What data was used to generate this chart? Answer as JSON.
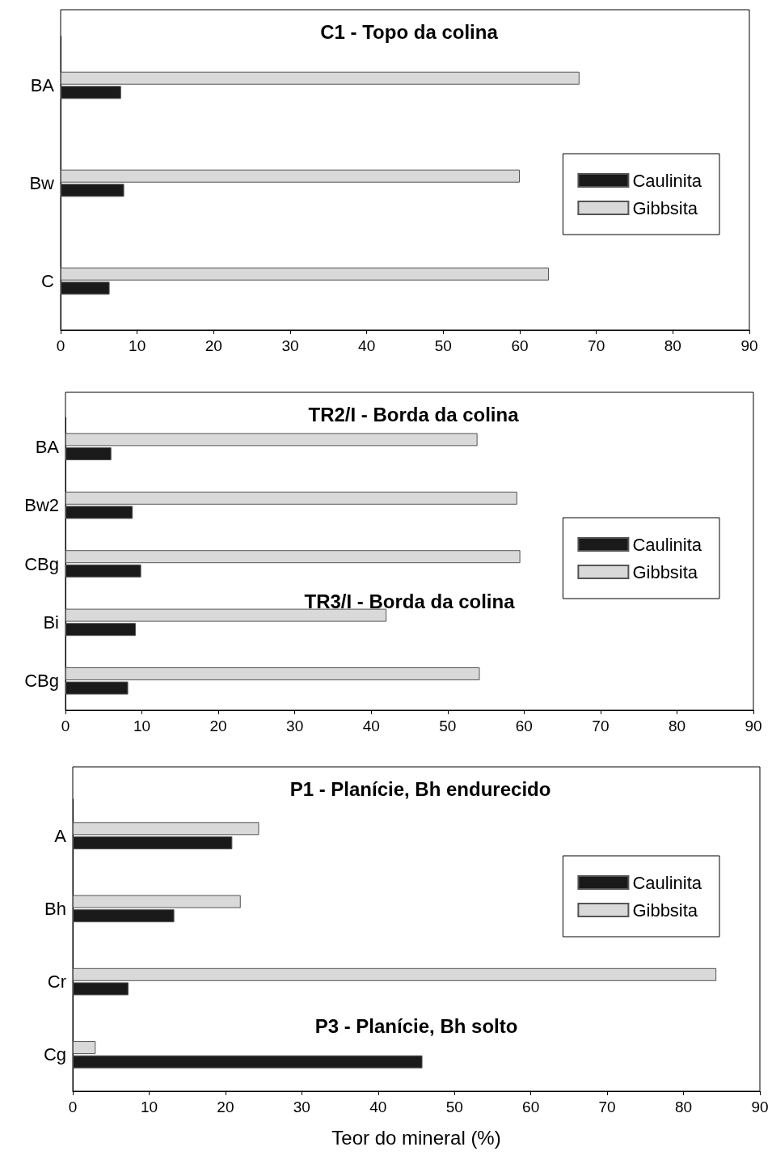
{
  "chart_data": [
    {
      "type": "bar",
      "orientation": "horizontal",
      "title": "C1 - Topo da colina",
      "categories": [
        "BA",
        "Bw",
        "C"
      ],
      "series": [
        {
          "name": "Caulinita",
          "color": "#1a1a1a",
          "values": [
            7.9,
            8.3,
            6.4
          ]
        },
        {
          "name": "Gibbsita",
          "color": "#d9d9d9",
          "values": [
            67.8,
            60.0,
            63.8
          ]
        }
      ],
      "xlim": [
        0,
        90
      ],
      "xticks": [
        0,
        10,
        20,
        30,
        40,
        50,
        60,
        70,
        80,
        90
      ],
      "grid": false,
      "legend": "right"
    },
    {
      "type": "bar",
      "orientation": "horizontal",
      "title": "TR2/I - Borda da colina",
      "categories": [
        "BA",
        "Bw2",
        "CBg",
        "Bi",
        "CBg"
      ],
      "series": [
        {
          "name": "Caulinita",
          "color": "#1a1a1a",
          "values": [
            6.0,
            8.8,
            9.9,
            9.2,
            8.2
          ]
        },
        {
          "name": "Gibbsita",
          "color": "#d9d9d9",
          "values": [
            53.9,
            59.1,
            59.5,
            42.0,
            54.2
          ]
        }
      ],
      "annotations": [
        "TR3/I - Borda da colina"
      ],
      "xlim": [
        0,
        90
      ],
      "xticks": [
        0,
        10,
        20,
        30,
        40,
        50,
        60,
        70,
        80,
        90
      ],
      "grid": false,
      "legend": "right"
    },
    {
      "type": "bar",
      "orientation": "horizontal",
      "title": "P1 - Planície, Bh endurecido",
      "xlabel": "Teor do mineral (%)",
      "categories": [
        "A",
        "Bh",
        "Cr",
        "Cg"
      ],
      "series": [
        {
          "name": "Caulinita",
          "color": "#1a1a1a",
          "values": [
            20.9,
            13.3,
            7.3,
            45.8
          ]
        },
        {
          "name": "Gibbsita",
          "color": "#d9d9d9",
          "values": [
            24.4,
            22.0,
            84.3,
            3.0
          ]
        }
      ],
      "annotations": [
        "P3 - Planície, Bh solto"
      ],
      "xlim": [
        0,
        90
      ],
      "xticks": [
        0,
        10,
        20,
        30,
        40,
        50,
        60,
        70,
        80,
        90
      ],
      "grid": false,
      "legend": "right"
    }
  ]
}
